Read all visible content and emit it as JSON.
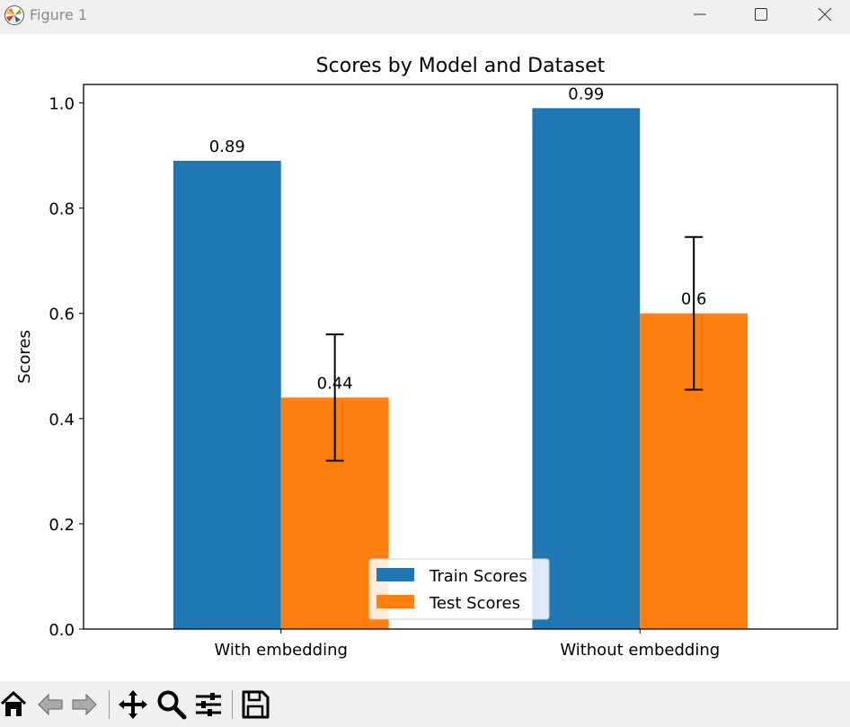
{
  "window": {
    "title": "Figure 1",
    "minimize_icon": "minimize-icon",
    "maximize_icon": "maximize-icon",
    "close_icon": "close-icon"
  },
  "toolbar": {
    "buttons": [
      "home-icon",
      "back-arrow-icon",
      "forward-arrow-icon",
      "pan-icon",
      "zoom-icon",
      "configure-subplots-icon",
      "save-icon"
    ]
  },
  "colors": {
    "train": "#1f77b4",
    "test": "#ff7f0e",
    "frame": "#000000"
  },
  "chart_data": {
    "type": "bar",
    "title": "Scores by Model and Dataset",
    "xlabel": "",
    "ylabel": "Scores",
    "categories": [
      "With embedding",
      "Without embedding"
    ],
    "ylim": [
      0,
      1.035
    ],
    "yticks": [
      0.0,
      0.2,
      0.4,
      0.6,
      0.8,
      1.0
    ],
    "ytick_labels": [
      "0.0",
      "0.2",
      "0.4",
      "0.6",
      "0.8",
      "1.0"
    ],
    "series": [
      {
        "name": "Train Scores",
        "values": [
          0.89,
          0.99
        ],
        "labels": [
          "0.89",
          "0.99"
        ],
        "color": "#1f77b4"
      },
      {
        "name": "Test Scores",
        "values": [
          0.44,
          0.6
        ],
        "labels": [
          "0.44",
          "0.6"
        ],
        "color": "#ff7f0e",
        "errors": [
          0.12,
          0.145
        ]
      }
    ],
    "legend_position": "lower center",
    "grid": false
  }
}
